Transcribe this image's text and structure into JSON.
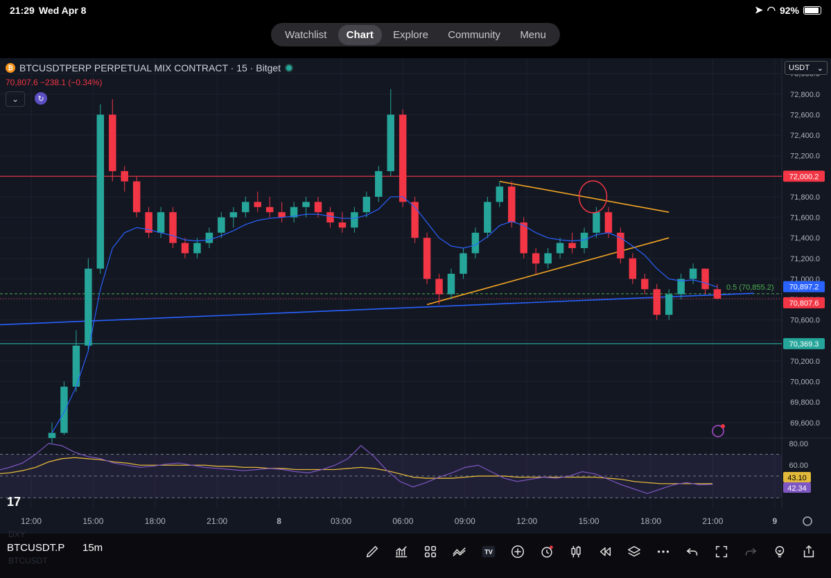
{
  "status": {
    "time": "21:29",
    "date": "Wed Apr 8",
    "battery": "92%",
    "battery_level": 0.92
  },
  "nav": {
    "tabs": [
      {
        "label": "Watchlist"
      },
      {
        "label": "Chart"
      },
      {
        "label": "Explore"
      },
      {
        "label": "Community"
      },
      {
        "label": "Menu"
      }
    ],
    "active": "Chart"
  },
  "header": {
    "symbol_title": "BTCUSDTPERP PERPETUAL MIX CONTRACT · 15 · Bitget",
    "price_change": "70,807.6  −238.1 (−0.34%)",
    "currency": "USDT"
  },
  "toolbar": {
    "symbol": "BTCUSDT.P",
    "timeframe": "15m",
    "ghost_top": "DXY",
    "ghost_bottom": "BTCUSDT"
  },
  "colors": {
    "up": "#26a69a",
    "down": "#f23645",
    "ema": "#2962ff",
    "trend": "#f5a623",
    "rsi": "#7e57c2",
    "rsi_ma": "#e2b93b",
    "bg": "#131722"
  },
  "chart_data": [
    {
      "type": "candlestick",
      "title": "BTCUSDTPERP PERPETUAL MIX CONTRACT · 15 · Bitget",
      "y_ticks": [
        "73,000.0",
        "72,800.0",
        "72,600.0",
        "72,400.0",
        "72,200.0",
        "72,000.0",
        "71,800.0",
        "71,600.0",
        "71,400.0",
        "71,200.0",
        "71,000.0",
        "70,800.0",
        "70,600.0",
        "70,400.0",
        "70,200.0",
        "70,000.0",
        "69,800.0",
        "69,600.0"
      ],
      "x_ticks": [
        "12:00",
        "15:00",
        "18:00",
        "21:00",
        "8",
        "03:00",
        "06:00",
        "09:00",
        "12:00",
        "15:00",
        "18:00",
        "21:00",
        "9"
      ],
      "ylim": [
        69450,
        73150
      ],
      "price_labels": [
        {
          "text": "72,000.2",
          "value": 72000.2,
          "color": "#f23645"
        },
        {
          "text": "70,897.2",
          "value": 70897.2,
          "color": "#2962ff"
        },
        {
          "text": "70,807.6",
          "value": 70807.6,
          "color": "#f23645"
        },
        {
          "text": "70,369.3",
          "value": 70369.3,
          "color": "#26a69a"
        }
      ],
      "fib_label": "0.5 (70,855.2)",
      "series": [
        {
          "name": "candles",
          "ohlc": [
            [
              69450,
              69600,
              69400,
              69500
            ],
            [
              69500,
              70000,
              69480,
              69950
            ],
            [
              69950,
              70500,
              69900,
              70350
            ],
            [
              70350,
              71200,
              70300,
              71100
            ],
            [
              71100,
              72700,
              71050,
              72600
            ],
            [
              72600,
              72750,
              71950,
              72050
            ],
            [
              72050,
              72100,
              71850,
              71950
            ],
            [
              71950,
              72000,
              71600,
              71650
            ],
            [
              71650,
              71700,
              71400,
              71450
            ],
            [
              71450,
              71700,
              71400,
              71650
            ],
            [
              71650,
              71700,
              71300,
              71350
            ],
            [
              71350,
              71400,
              71200,
              71250
            ],
            [
              71250,
              71400,
              71200,
              71350
            ],
            [
              71350,
              71500,
              71300,
              71450
            ],
            [
              71450,
              71650,
              71400,
              71600
            ],
            [
              71600,
              71700,
              71500,
              71650
            ],
            [
              71650,
              71800,
              71600,
              71750
            ],
            [
              71750,
              71850,
              71650,
              71700
            ],
            [
              71700,
              71800,
              71600,
              71650
            ],
            [
              71650,
              71750,
              71550,
              71600
            ],
            [
              71600,
              71750,
              71550,
              71700
            ],
            [
              71700,
              71800,
              71600,
              71750
            ],
            [
              71750,
              71800,
              71600,
              71650
            ],
            [
              71650,
              71700,
              71500,
              71550
            ],
            [
              71550,
              71650,
              71450,
              71500
            ],
            [
              71500,
              71700,
              71450,
              71650
            ],
            [
              71650,
              71850,
              71600,
              71800
            ],
            [
              71800,
              72100,
              71750,
              72050
            ],
            [
              72050,
              72850,
              72000,
              72600
            ],
            [
              72600,
              72650,
              71700,
              71750
            ],
            [
              71750,
              71800,
              71350,
              71400
            ],
            [
              71400,
              71450,
              70950,
              71000
            ],
            [
              71000,
              71050,
              70750,
              70850
            ],
            [
              70850,
              71100,
              70800,
              71050
            ],
            [
              71050,
              71300,
              71000,
              71250
            ],
            [
              71250,
              71500,
              71200,
              71450
            ],
            [
              71450,
              71800,
              71400,
              71750
            ],
            [
              71750,
              71950,
              71700,
              71900
            ],
            [
              71900,
              71950,
              71500,
              71550
            ],
            [
              71550,
              71600,
              71200,
              71250
            ],
            [
              71250,
              71300,
              71050,
              71150
            ],
            [
              71150,
              71300,
              71100,
              71250
            ],
            [
              71250,
              71400,
              71200,
              71350
            ],
            [
              71350,
              71450,
              71250,
              71300
            ],
            [
              71300,
              71500,
              71250,
              71450
            ],
            [
              71450,
              71700,
              71400,
              71650
            ],
            [
              71650,
              71700,
              71400,
              71450
            ],
            [
              71450,
              71500,
              71150,
              71200
            ],
            [
              71200,
              71250,
              70950,
              71000
            ],
            [
              71000,
              71050,
              70850,
              70900
            ],
            [
              70900,
              70950,
              70600,
              70650
            ],
            [
              70650,
              70900,
              70600,
              70850
            ],
            [
              70850,
              71050,
              70800,
              71000
            ],
            [
              71000,
              71150,
              70950,
              71100
            ],
            [
              71100,
              71100,
              70850,
              70900
            ],
            [
              70900,
              70950,
              70800,
              70807.6
            ]
          ]
        },
        {
          "name": "EMA",
          "values": [
            69500,
            69700,
            69950,
            70300,
            70900,
            71300,
            71450,
            71500,
            71480,
            71450,
            71420,
            71380,
            71370,
            71380,
            71420,
            71470,
            71530,
            71570,
            71590,
            71600,
            71610,
            71630,
            71630,
            71610,
            71590,
            71590,
            71620,
            71680,
            71800,
            71800,
            71700,
            71550,
            71400,
            71320,
            71300,
            71330,
            71410,
            71520,
            71560,
            71520,
            71450,
            71400,
            71380,
            71370,
            71380,
            71430,
            71450,
            71400,
            71320,
            71230,
            71100,
            71000,
            70980,
            70990,
            70960,
            70920
          ]
        }
      ],
      "trendlines": [
        {
          "from": [
            37,
            71950
          ],
          "to": [
            51,
            71650
          ],
          "color": "#f5a623"
        },
        {
          "from": [
            31,
            70750
          ],
          "to": [
            51,
            71400
          ],
          "color": "#f5a623"
        },
        {
          "from": [
            -5,
            70550
          ],
          "to": [
            58,
            70860
          ],
          "color": "#2962ff"
        }
      ]
    },
    {
      "type": "line",
      "title": "RSI",
      "y_ticks": [
        "80.00",
        "60.00"
      ],
      "ylim": [
        20,
        85
      ],
      "value_labels": [
        {
          "text": "43.10",
          "color": "#e2b93b"
        },
        {
          "text": "42.34",
          "color": "#7e57c2"
        }
      ],
      "series": [
        {
          "name": "RSI",
          "values": [
            55,
            58,
            62,
            70,
            80,
            78,
            72,
            68,
            66,
            62,
            60,
            58,
            59,
            61,
            62,
            60,
            58,
            57,
            56,
            55,
            56,
            57,
            56,
            54,
            53,
            56,
            60,
            66,
            78,
            68,
            55,
            45,
            40,
            44,
            49,
            53,
            58,
            60,
            54,
            48,
            45,
            47,
            49,
            48,
            50,
            54,
            52,
            47,
            42,
            38,
            34,
            38,
            42,
            44,
            42,
            42.34
          ]
        },
        {
          "name": "RSI MA",
          "values": [
            52,
            53,
            55,
            58,
            63,
            66,
            67,
            66,
            65,
            63,
            62,
            60,
            60,
            60,
            60,
            60,
            60,
            59,
            59,
            58,
            58,
            57,
            57,
            56,
            56,
            56,
            56,
            57,
            58,
            57,
            55,
            52,
            49,
            48,
            48,
            48,
            49,
            50,
            50,
            50,
            49,
            49,
            49,
            49,
            49,
            49,
            49,
            48,
            47,
            45,
            44,
            43,
            43,
            43,
            43,
            43.1
          ]
        }
      ]
    }
  ]
}
